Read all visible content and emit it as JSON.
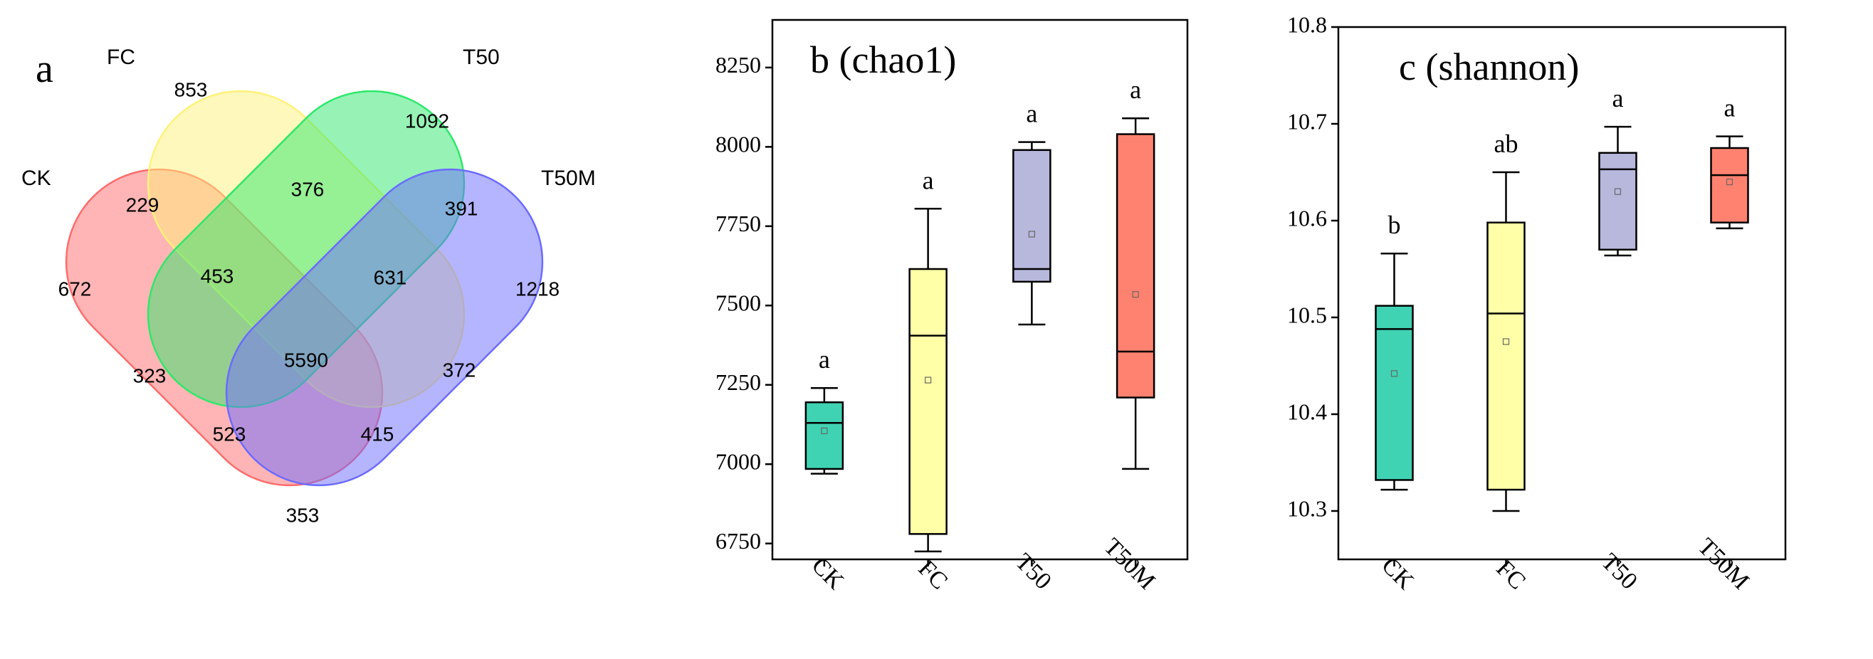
{
  "chart_data": [
    {
      "type": "venn",
      "panel_label": "a",
      "sets": [
        {
          "name": "CK",
          "color": "#ff6b6b"
        },
        {
          "name": "FC",
          "color": "#fff27a"
        },
        {
          "name": "T50",
          "color": "#2ee86b"
        },
        {
          "name": "T50M",
          "color": "#6b6bff"
        }
      ],
      "regions": [
        {
          "sets": [
            "FC"
          ],
          "value": "853"
        },
        {
          "sets": [
            "T50"
          ],
          "value": "1092"
        },
        {
          "sets": [
            "CK"
          ],
          "value": "672"
        },
        {
          "sets": [
            "T50M"
          ],
          "value": "1218"
        },
        {
          "sets": [
            "CK",
            "FC"
          ],
          "value": "229"
        },
        {
          "sets": [
            "FC",
            "T50"
          ],
          "value": "376"
        },
        {
          "sets": [
            "T50",
            "T50M"
          ],
          "value": "391"
        },
        {
          "sets": [
            "CK",
            "FC",
            "T50"
          ],
          "value": "453"
        },
        {
          "sets": [
            "FC",
            "T50",
            "T50M"
          ],
          "value": "631"
        },
        {
          "sets": [
            "CK",
            "T50"
          ],
          "value": "323"
        },
        {
          "sets": [
            "CK",
            "FC",
            "T50",
            "T50M"
          ],
          "value": "5590"
        },
        {
          "sets": [
            "FC",
            "T50M"
          ],
          "value": "372"
        },
        {
          "sets": [
            "CK",
            "T50",
            "T50M"
          ],
          "value": "523"
        },
        {
          "sets": [
            "CK",
            "FC",
            "T50M"
          ],
          "value": "415"
        },
        {
          "sets": [
            "CK",
            "T50M"
          ],
          "value": "353"
        }
      ]
    },
    {
      "type": "box",
      "title": "b (chao1)",
      "categories": [
        "CK",
        "FC",
        "T50",
        "T50M"
      ],
      "ylim": [
        6700,
        8400
      ],
      "yticks": [
        6750,
        7000,
        7250,
        7500,
        7750,
        8000,
        8250
      ],
      "boxes": [
        {
          "category": "CK",
          "min": 6970,
          "q1": 6985,
          "median": 7130,
          "q3": 7195,
          "max": 7240,
          "mean": 7105,
          "color": "#40d3b3",
          "letter": "a"
        },
        {
          "category": "FC",
          "min": 6725,
          "q1": 6780,
          "median": 7405,
          "q3": 7615,
          "max": 7805,
          "mean": 7265,
          "color": "#ffffa8",
          "letter": "a"
        },
        {
          "category": "T50",
          "min": 7440,
          "q1": 7575,
          "median": 7615,
          "q3": 7990,
          "max": 8015,
          "mean": 7725,
          "color": "#b8b8dc",
          "letter": "a"
        },
        {
          "category": "T50M",
          "min": 6985,
          "q1": 7210,
          "median": 7355,
          "q3": 8040,
          "max": 8090,
          "mean": 7535,
          "color": "#ff8270",
          "letter": "a"
        }
      ],
      "grid": false
    },
    {
      "type": "box",
      "title": "c (shannon)",
      "categories": [
        "CK",
        "FC",
        "T50",
        "T50M"
      ],
      "ylim": [
        10.25,
        10.8
      ],
      "yticks": [
        10.3,
        10.4,
        10.5,
        10.6,
        10.7,
        10.8
      ],
      "boxes": [
        {
          "category": "CK",
          "min": 10.322,
          "q1": 10.332,
          "median": 10.488,
          "q3": 10.512,
          "max": 10.566,
          "mean": 10.442,
          "color": "#40d3b3",
          "letter": "b"
        },
        {
          "category": "FC",
          "min": 10.3,
          "q1": 10.322,
          "median": 10.504,
          "q3": 10.598,
          "max": 10.65,
          "mean": 10.475,
          "color": "#ffffa8",
          "letter": "ab"
        },
        {
          "category": "T50",
          "min": 10.564,
          "q1": 10.57,
          "median": 10.653,
          "q3": 10.67,
          "max": 10.697,
          "mean": 10.63,
          "color": "#b8b8dc",
          "letter": "a"
        },
        {
          "category": "T50M",
          "min": 10.592,
          "q1": 10.598,
          "median": 10.647,
          "q3": 10.675,
          "max": 10.687,
          "mean": 10.64,
          "color": "#ff8270",
          "letter": "a"
        }
      ],
      "grid": false
    }
  ]
}
